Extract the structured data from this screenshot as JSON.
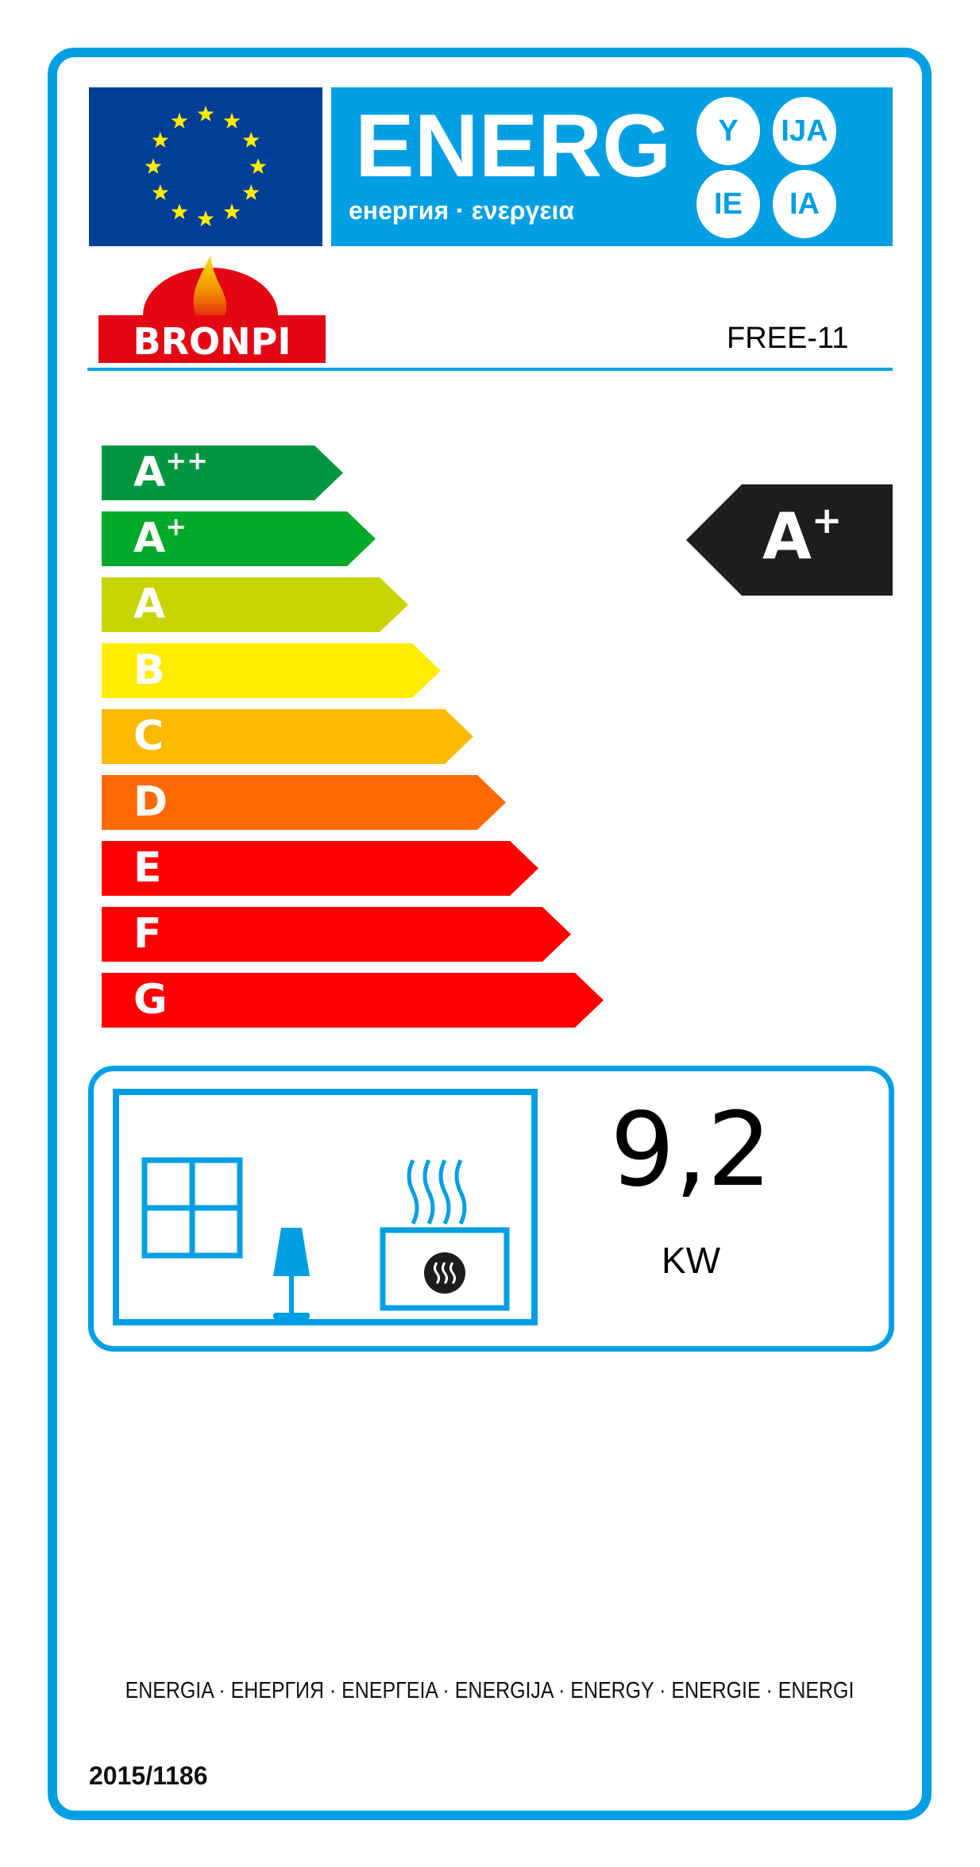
{
  "header": {
    "energy_word": "ENERG",
    "energy_subtitle": "енергия · ενεργεια",
    "suffixes": [
      "Y",
      "IJA",
      "IE",
      "IA"
    ],
    "brand_logo_text": "BRONPI",
    "model": "FREE-11"
  },
  "scale": {
    "classes": [
      {
        "letter": "A",
        "sup": "++",
        "color": "#009640"
      },
      {
        "letter": "A",
        "sup": "+",
        "color": "#00a927"
      },
      {
        "letter": "A",
        "sup": "",
        "color": "#c8d400"
      },
      {
        "letter": "B",
        "sup": "",
        "color": "#ffed00"
      },
      {
        "letter": "C",
        "sup": "",
        "color": "#fbba00"
      },
      {
        "letter": "D",
        "sup": "",
        "color": "#ff6a00"
      },
      {
        "letter": "E",
        "sup": "",
        "color": "#ff0000"
      },
      {
        "letter": "F",
        "sup": "",
        "color": "#ff0000"
      },
      {
        "letter": "G",
        "sup": "",
        "color": "#ff0000"
      }
    ]
  },
  "rating": {
    "letter": "A",
    "sup": "+",
    "color": "#1d1d1b"
  },
  "output": {
    "value": "9,2",
    "unit": "KW",
    "icons": [
      "window-icon",
      "lamp-icon",
      "heater-icon"
    ]
  },
  "footer": {
    "languages": "ENERGIA · ЕНЕРГИЯ · ΕΝΕΡΓΕΙΑ · ENERGIJA · ENERGY · ENERGIE · ENERGI",
    "regulation": "2015/1186"
  },
  "colors": {
    "accent": "#009fe3",
    "eu_blue": "#003f98",
    "star": "#ffed00",
    "brand_red": "#e30613"
  }
}
